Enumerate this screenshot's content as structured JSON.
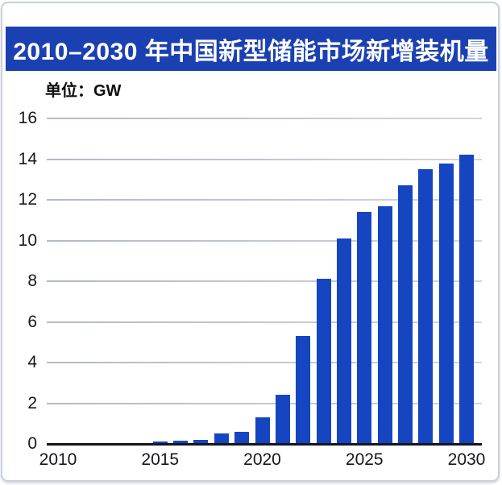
{
  "header": {
    "title": "2010–2030 年中国新型储能市场新增装机量",
    "unit_label": "单位：GW"
  },
  "colors": {
    "banner_bg": "#1b40b2",
    "bar": "#1545c0",
    "grid": "#9aa2b2",
    "axis": "#14161d",
    "tick_text": "#16171b",
    "title_text": "#ffffff"
  },
  "chart_data": {
    "type": "bar",
    "title": "2010–2030 年中国新型储能市场新增装机量",
    "unit": "GW",
    "categories": [
      2010,
      2011,
      2012,
      2013,
      2014,
      2015,
      2016,
      2017,
      2018,
      2019,
      2020,
      2021,
      2022,
      2023,
      2024,
      2025,
      2026,
      2027,
      2028,
      2029,
      2030
    ],
    "values": [
      0,
      0,
      0,
      0,
      0,
      0.1,
      0.15,
      0.2,
      0.5,
      0.6,
      1.3,
      2.4,
      5.3,
      8.1,
      10.1,
      11.4,
      11.7,
      12.7,
      13.5,
      13.8,
      14.2
    ],
    "x_ticks": [
      2010,
      2015,
      2020,
      2025,
      2030
    ],
    "y_ticks": [
      0,
      2,
      4,
      6,
      8,
      10,
      12,
      14,
      16
    ],
    "ylim": [
      0,
      16
    ],
    "grid": true,
    "legend": false
  }
}
